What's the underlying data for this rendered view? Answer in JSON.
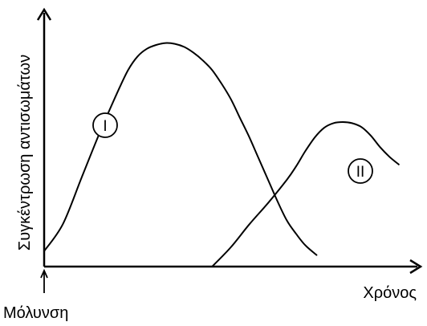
{
  "chart_data": {
    "type": "line",
    "title": "",
    "xlabel": "Χρόνος",
    "ylabel": "Συγκέντρωση αντισωμάτων",
    "x_annotation": "Μόλυνση",
    "grid": false,
    "series": [
      {
        "name": "I",
        "x": [
          0.0,
          1.0,
          2.0,
          3.0,
          4.0,
          4.5,
          5.0,
          5.5,
          6.0,
          6.5,
          7.0,
          7.5,
          8.0,
          8.5,
          9.0,
          9.5,
          10.0,
          10.5,
          11.0,
          11.5,
          12.0,
          12.5,
          13.0,
          13.5,
          14.0,
          14.6
        ],
        "y": [
          0.4,
          1.1,
          2.3,
          3.5,
          4.6,
          5.1,
          5.45,
          5.65,
          5.75,
          5.8,
          5.78,
          5.7,
          5.55,
          5.35,
          5.1,
          4.75,
          4.35,
          3.85,
          3.35,
          2.8,
          2.25,
          1.7,
          1.2,
          0.85,
          0.55,
          0.3
        ]
      },
      {
        "name": "II",
        "x": [
          9.0,
          10.0,
          11.0,
          12.0,
          13.0,
          13.5,
          14.0,
          14.5,
          15.0,
          15.5,
          16.0,
          16.5,
          17.0,
          17.5,
          18.0,
          18.5,
          19.0
        ],
        "y": [
          0.0,
          0.5,
          1.1,
          1.65,
          2.25,
          2.6,
          3.0,
          3.35,
          3.6,
          3.72,
          3.75,
          3.72,
          3.62,
          3.4,
          3.1,
          2.85,
          2.65
        ]
      }
    ],
    "labels": {
      "I": "Ι",
      "II": "ΙΙ"
    },
    "xlim": [
      0,
      20
    ],
    "ylim": [
      0,
      6.5
    ],
    "colors": {
      "line": "#000000",
      "axis": "#000000",
      "background": "#ffffff"
    }
  }
}
